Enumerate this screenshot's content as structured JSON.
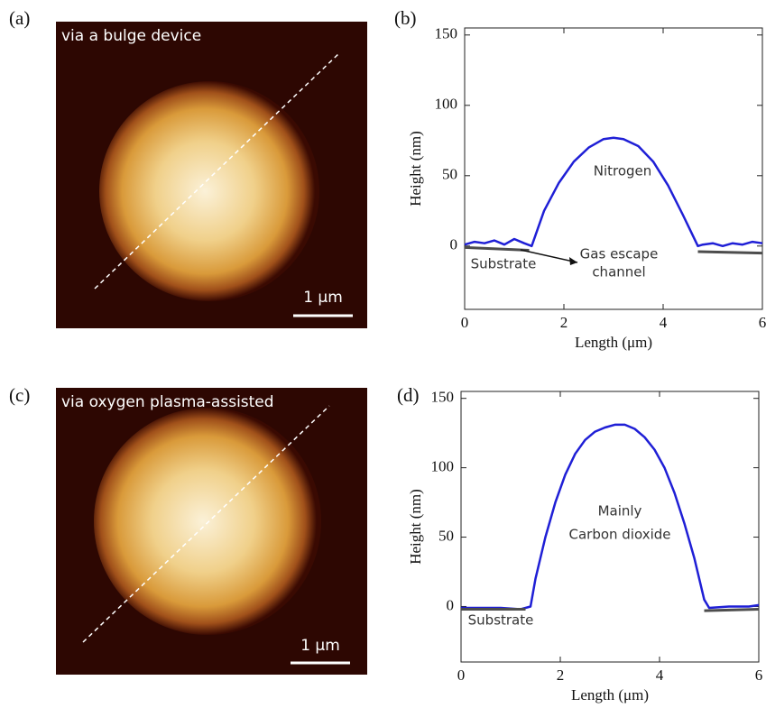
{
  "panels": [
    {
      "label": "(a)",
      "caption": "via a bulge device",
      "scale_bar": "1 μm"
    },
    {
      "label": "(c)",
      "caption": "via oxygen plasma-assisted",
      "scale_bar": "1 μm"
    }
  ],
  "chart_data": [
    {
      "type": "line",
      "label": "(b)",
      "xlabel": "Length (μm)",
      "ylabel": "Height (nm)",
      "xlim": [
        0,
        6
      ],
      "ylim": [
        -45,
        155
      ],
      "xticks": [
        0,
        2,
        4,
        6
      ],
      "yticks": [
        0,
        50,
        100,
        150
      ],
      "annotations": [
        "Nitrogen",
        "Substrate",
        "Gas escape",
        "channel"
      ],
      "series": [
        {
          "color": "#1f1fd6",
          "x": [
            0,
            0.2,
            0.4,
            0.6,
            0.8,
            1.0,
            1.2,
            1.35,
            1.6,
            1.9,
            2.2,
            2.5,
            2.8,
            3.0,
            3.2,
            3.5,
            3.8,
            4.1,
            4.4,
            4.7,
            4.8,
            5.0,
            5.2,
            5.4,
            5.6,
            5.8,
            6.0
          ],
          "values": [
            1,
            3,
            2,
            4,
            1,
            5,
            2,
            0,
            25,
            45,
            60,
            70,
            76,
            77,
            76,
            71,
            60,
            43,
            22,
            0,
            1,
            2,
            0,
            2,
            1,
            3,
            2
          ]
        },
        {
          "color": "#4d4d4d",
          "x": [
            0,
            1.3,
            3,
            4.7,
            6
          ],
          "values": [
            -1,
            -3,
            null,
            -4,
            -5
          ]
        }
      ]
    },
    {
      "type": "line",
      "label": "(d)",
      "xlabel": "Length (μm)",
      "ylabel": "Height (nm)",
      "xlim": [
        0,
        6
      ],
      "ylim": [
        -40,
        155
      ],
      "xticks": [
        0,
        2,
        4,
        6
      ],
      "yticks": [
        0,
        50,
        100,
        150
      ],
      "annotations": [
        "Mainly",
        "Carbon dioxide",
        "Substrate"
      ],
      "series": [
        {
          "color": "#1f1fd6",
          "x": [
            0,
            0.4,
            0.8,
            1.2,
            1.4,
            1.5,
            1.7,
            1.9,
            2.1,
            2.3,
            2.5,
            2.7,
            2.9,
            3.1,
            3.3,
            3.5,
            3.7,
            3.9,
            4.1,
            4.3,
            4.5,
            4.7,
            4.9,
            5.0,
            5.4,
            5.8,
            6.0
          ],
          "values": [
            -1,
            -1,
            -1,
            -2,
            0,
            20,
            50,
            75,
            95,
            110,
            120,
            126,
            129,
            131,
            131,
            128,
            122,
            113,
            100,
            82,
            60,
            35,
            5,
            -1,
            0,
            0,
            1
          ]
        },
        {
          "color": "#4d4d4d",
          "x": [
            0,
            1.3,
            3,
            4.9,
            6
          ],
          "values": [
            -2,
            -2,
            null,
            -3,
            -2
          ]
        }
      ]
    }
  ]
}
